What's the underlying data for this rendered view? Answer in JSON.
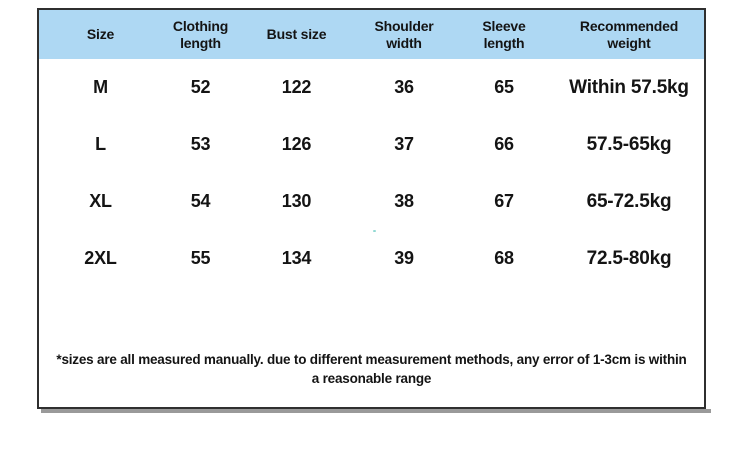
{
  "chart_data": {
    "type": "table",
    "columns": [
      "Size",
      "Clothing length",
      "Bust size",
      "Shoulder width",
      "Sleeve length",
      "Recommended weight"
    ],
    "rows": [
      [
        "M",
        "52",
        "122",
        "36",
        "65",
        "Within 57.5kg"
      ],
      [
        "L",
        "53",
        "126",
        "37",
        "66",
        "57.5-65kg"
      ],
      [
        "XL",
        "54",
        "130",
        "38",
        "67",
        "65-72.5kg"
      ],
      [
        "2XL",
        "55",
        "134",
        "39",
        "68",
        "72.5-80kg"
      ]
    ],
    "footnote_lines": [
      "*sizes are all measured manually. due to different measurement methods, any error of 1-3cm is within",
      "a reasonable range"
    ]
  },
  "colors": {
    "header_bg": "#aed8f3",
    "table_border": "#2f2f2f",
    "shadow": "#9a9a9a",
    "text": "#141414"
  }
}
